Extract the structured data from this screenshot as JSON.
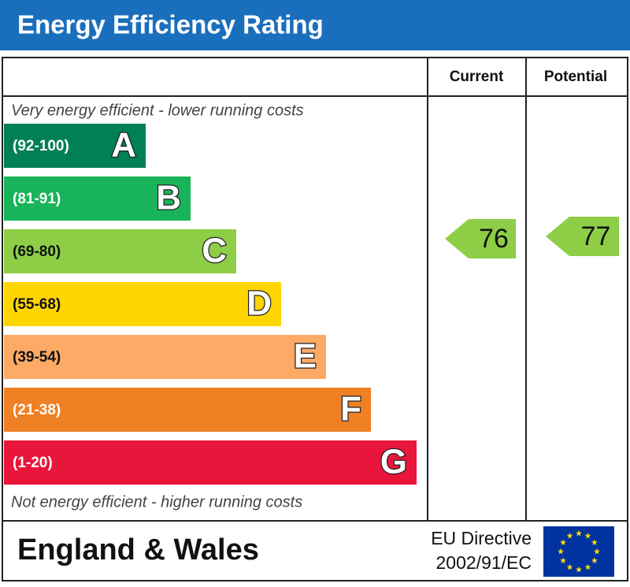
{
  "header": {
    "title": "Energy Efficiency Rating"
  },
  "columns": {
    "current": "Current",
    "potential": "Potential"
  },
  "notes": {
    "top": "Very energy efficient - lower running costs",
    "bottom": "Not energy efficient - higher running costs"
  },
  "bands": [
    {
      "range": "(92-100)",
      "letter": "A",
      "color": "#008054"
    },
    {
      "range": "(81-91)",
      "letter": "B",
      "color": "#19b459"
    },
    {
      "range": "(69-80)",
      "letter": "C",
      "color": "#8dce46"
    },
    {
      "range": "(55-68)",
      "letter": "D",
      "color": "#ffd500"
    },
    {
      "range": "(39-54)",
      "letter": "E",
      "color": "#fcaa65"
    },
    {
      "range": "(21-38)",
      "letter": "F",
      "color": "#ef8023"
    },
    {
      "range": "(1-20)",
      "letter": "G",
      "color": "#e9153b"
    }
  ],
  "ratings": {
    "current": {
      "value": "76",
      "color": "#8dce46"
    },
    "potential": {
      "value": "77",
      "color": "#8dce46"
    }
  },
  "footer": {
    "region": "England & Wales",
    "directive": [
      "EU Directive",
      "2002/91/EC"
    ]
  }
}
